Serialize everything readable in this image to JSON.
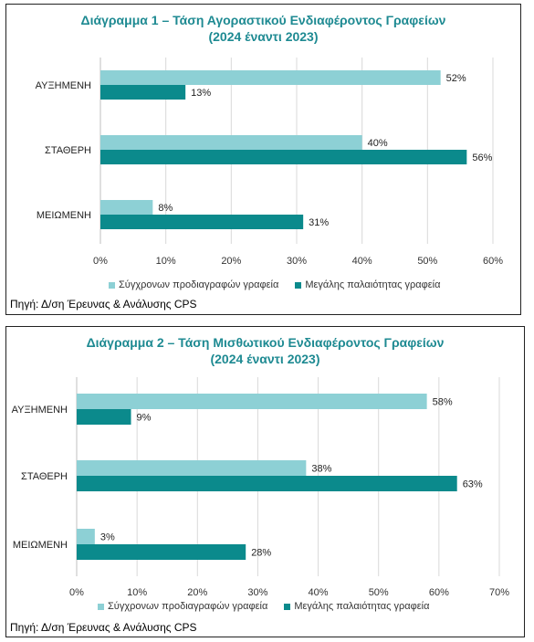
{
  "colors": {
    "series1": "#8dd0d5",
    "series2": "#0b8a8c",
    "title": "#1e8a92"
  },
  "source_note": "Πηγή: Δ/ση Έρευνας & Ανάλυσης CPS",
  "chart_data": [
    {
      "type": "bar",
      "orientation": "horizontal",
      "title": "Διάγραμμα 1 – Τάση Αγοραστικού Ενδιαφέροντος Γραφείων",
      "subtitle": "(2024 έναντι 2023)",
      "categories": [
        "ΑΥΞΗΜΕΝΗ",
        "ΣΤΑΘΕΡΗ",
        "ΜΕΙΩΜΕΝΗ"
      ],
      "series": [
        {
          "name": "Σύγχρονων προδιαγραφών γραφεία",
          "values": [
            52,
            40,
            8
          ],
          "labels": [
            "52%",
            "40%",
            "8%"
          ]
        },
        {
          "name": "Μεγάλης παλαιότητας γραφεία",
          "values": [
            13,
            56,
            31
          ],
          "labels": [
            "13%",
            "56%",
            "31%"
          ]
        }
      ],
      "xlim": [
        0,
        60
      ],
      "ticks": [
        "0%",
        "10%",
        "20%",
        "30%",
        "40%",
        "50%",
        "60%"
      ],
      "grid": true,
      "legend": "bottom"
    },
    {
      "type": "bar",
      "orientation": "horizontal",
      "title": "Διάγραμμα 2 – Τάση Μισθωτικού Ενδιαφέροντος Γραφείων",
      "subtitle": "(2024 έναντι 2023)",
      "categories": [
        "ΑΥΞΗΜΕΝΗ",
        "ΣΤΑΘΕΡΗ",
        "ΜΕΙΩΜΕΝΗ"
      ],
      "series": [
        {
          "name": "Σύγχρονων προδιαγραφών γραφεία",
          "values": [
            58,
            38,
            3
          ],
          "labels": [
            "58%",
            "38%",
            "3%"
          ]
        },
        {
          "name": "Μεγάλης παλαιότητας γραφεία",
          "values": [
            9,
            63,
            28
          ],
          "labels": [
            "9%",
            "63%",
            "28%"
          ]
        }
      ],
      "xlim": [
        0,
        70
      ],
      "ticks": [
        "0%",
        "10%",
        "20%",
        "30%",
        "40%",
        "50%",
        "60%",
        "70%"
      ],
      "grid": true,
      "legend": "bottom"
    }
  ]
}
